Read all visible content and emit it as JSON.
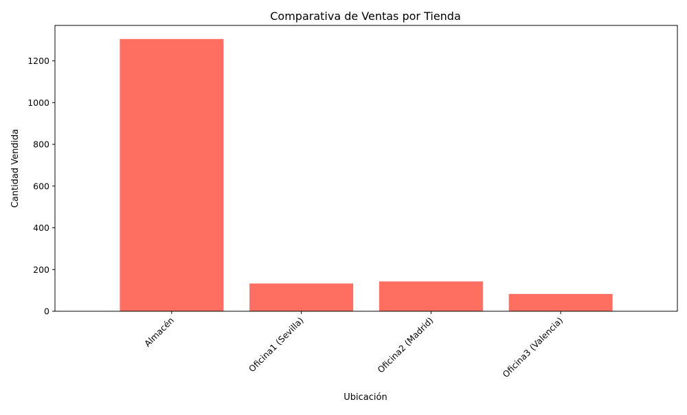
{
  "chart_data": {
    "type": "bar",
    "title": "Comparativa de Ventas por Tienda",
    "xlabel": "Ubicación",
    "ylabel": "Cantidad Vendida",
    "categories": [
      "Almacén",
      "Oficina1 (Sevilla)",
      "Oficina2 (Madrid)",
      "Oficina3 (Valencia)"
    ],
    "values": [
      1305,
      133,
      143,
      83
    ],
    "ylim": [
      0,
      1370
    ],
    "yticks": [
      0,
      200,
      400,
      600,
      800,
      1000,
      1200
    ],
    "ytick_labels": [
      "0",
      "200",
      "400",
      "600",
      "800",
      "1000",
      "1200"
    ],
    "x_tick_rotation_deg": 45,
    "grid": false,
    "legend": "none",
    "bar_color": "#ff6f61"
  }
}
